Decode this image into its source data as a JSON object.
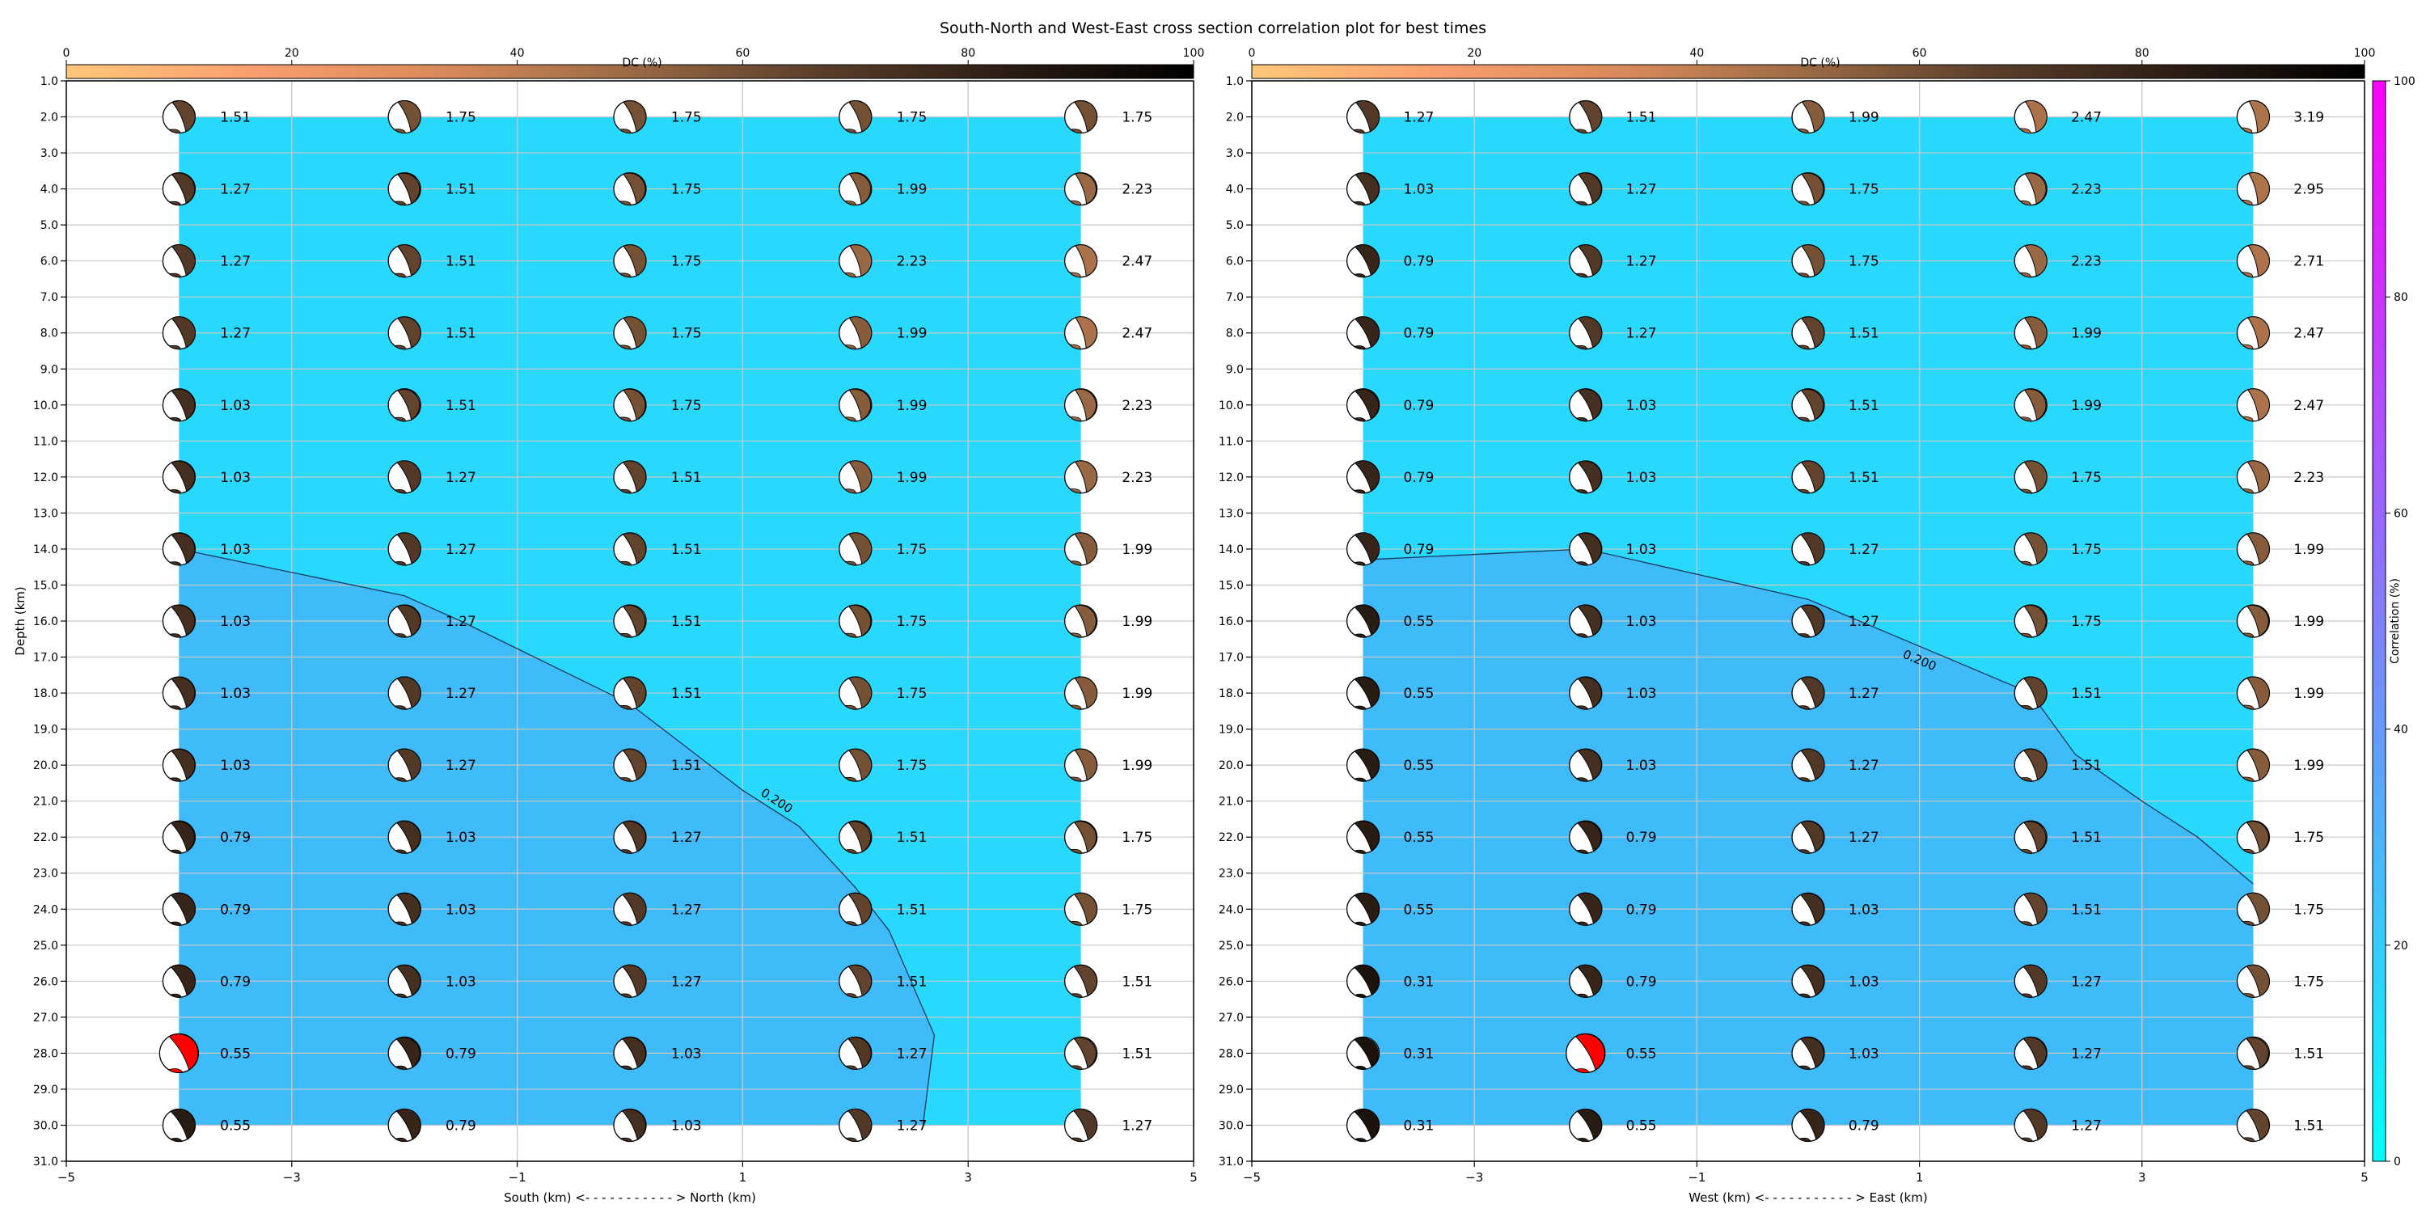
{
  "figure_title": "South-North and West-East cross section correlation plot for best times",
  "colors": {
    "background": "#ffffff",
    "low_correlation_fill": "#29d8fd",
    "high_correlation_fill": "#40bbfa",
    "contour_line": "#1b3a5a",
    "grid": "#c8c8c8",
    "best_solution_fill": "#ff0000",
    "beachball_light": "#ffffff",
    "dc_colormap": [
      "#fec77a",
      "#f99e6e",
      "#d98a5a",
      "#9a6a45",
      "#5a3e2b",
      "#2b1d14",
      "#000000"
    ],
    "correlation_colormap": [
      "#00ffff",
      "#40c0ff",
      "#8080ff",
      "#c040ff",
      "#ff00ff"
    ]
  },
  "chart_data": [
    {
      "type": "scatter",
      "name": "",
      "xlabel": "South (km) <- - - - - - - - - - - > North (km)",
      "ylabel": "Depth (km)",
      "xlim": [
        -5,
        5
      ],
      "ylim": [
        31,
        1
      ],
      "xticks": [
        "−5",
        "−3",
        "−1",
        "1",
        "3",
        "5"
      ],
      "yticks": [
        "1.0",
        "2.0",
        "3.0",
        "4.0",
        "5.0",
        "6.0",
        "7.0",
        "8.0",
        "9.0",
        "10.0",
        "11.0",
        "12.0",
        "13.0",
        "14.0",
        "15.0",
        "16.0",
        "17.0",
        "18.0",
        "19.0",
        "20.0",
        "21.0",
        "22.0",
        "23.0",
        "24.0",
        "25.0",
        "26.0",
        "27.0",
        "28.0",
        "29.0",
        "30.0",
        "31.0"
      ],
      "grid": true,
      "dc_colorbar": {
        "label": "DC (%)",
        "range": [
          0,
          100
        ],
        "ticks": [
          "0",
          "20",
          "40",
          "60",
          "80",
          "100"
        ],
        "position": "top"
      },
      "columns_x": [
        -4,
        -2,
        0,
        2,
        4
      ],
      "depths": [
        2,
        4,
        6,
        8,
        10,
        12,
        14,
        16,
        18,
        20,
        22,
        24,
        26,
        28,
        30
      ],
      "correlation_labels": [
        [
          "1.51",
          "1.75",
          "1.75",
          "1.75",
          "1.75"
        ],
        [
          "1.27",
          "1.51",
          "1.75",
          "1.99",
          "2.23"
        ],
        [
          "1.27",
          "1.51",
          "1.75",
          "2.23",
          "2.47"
        ],
        [
          "1.27",
          "1.51",
          "1.75",
          "1.99",
          "2.47"
        ],
        [
          "1.03",
          "1.51",
          "1.75",
          "1.99",
          "2.23"
        ],
        [
          "1.03",
          "1.27",
          "1.51",
          "1.99",
          "2.23"
        ],
        [
          "1.03",
          "1.27",
          "1.51",
          "1.75",
          "1.99"
        ],
        [
          "1.03",
          "1.27",
          "1.51",
          "1.75",
          "1.99"
        ],
        [
          "1.03",
          "1.27",
          "1.51",
          "1.75",
          "1.99"
        ],
        [
          "1.03",
          "1.27",
          "1.51",
          "1.75",
          "1.99"
        ],
        [
          "0.79",
          "1.03",
          "1.27",
          "1.51",
          "1.75"
        ],
        [
          "0.79",
          "1.03",
          "1.27",
          "1.51",
          "1.75"
        ],
        [
          "0.79",
          "1.03",
          "1.27",
          "1.51",
          "1.51"
        ],
        [
          "0.55",
          "0.79",
          "1.03",
          "1.27",
          "1.51"
        ],
        [
          "0.55",
          "0.79",
          "1.03",
          "1.27",
          "1.27"
        ]
      ],
      "best_solution": {
        "x": -4,
        "depth": 28
      },
      "contour": {
        "label": "0.200",
        "label_at": [
          1.3,
          21.0
        ],
        "points": [
          [
            -4,
            14.0
          ],
          [
            -2,
            15.3
          ],
          [
            -1.5,
            16.0
          ],
          [
            0,
            18.3
          ],
          [
            0.5,
            19.5
          ],
          [
            1,
            20.7
          ],
          [
            1.5,
            21.7
          ],
          [
            2,
            23.4
          ],
          [
            2.3,
            24.6
          ],
          [
            2.7,
            27.5
          ],
          [
            2.6,
            30.0
          ]
        ]
      }
    },
    {
      "type": "scatter",
      "name": "",
      "xlabel": "West (km) <- - - - - - - - - - - > East (km)",
      "ylabel": "",
      "xlim": [
        -5,
        5
      ],
      "ylim": [
        31,
        1
      ],
      "xticks": [
        "−5",
        "−3",
        "−1",
        "1",
        "3",
        "5"
      ],
      "yticks": [
        "1.0",
        "2.0",
        "3.0",
        "4.0",
        "5.0",
        "6.0",
        "7.0",
        "8.0",
        "9.0",
        "10.0",
        "11.0",
        "12.0",
        "13.0",
        "14.0",
        "15.0",
        "16.0",
        "17.0",
        "18.0",
        "19.0",
        "20.0",
        "21.0",
        "22.0",
        "23.0",
        "24.0",
        "25.0",
        "26.0",
        "27.0",
        "28.0",
        "29.0",
        "30.0",
        "31.0"
      ],
      "grid": true,
      "dc_colorbar": {
        "label": "DC (%)",
        "range": [
          0,
          100
        ],
        "ticks": [
          "0",
          "20",
          "40",
          "60",
          "80",
          "100"
        ],
        "position": "top"
      },
      "correlation_colorbar": {
        "label": "Correlation (%)",
        "range": [
          0,
          100
        ],
        "ticks": [
          "0",
          "20",
          "40",
          "60",
          "80",
          "100"
        ],
        "position": "right"
      },
      "columns_x": [
        -4,
        -2,
        0,
        2,
        4
      ],
      "depths": [
        2,
        4,
        6,
        8,
        10,
        12,
        14,
        16,
        18,
        20,
        22,
        24,
        26,
        28,
        30
      ],
      "correlation_labels": [
        [
          "1.27",
          "1.51",
          "1.99",
          "2.47",
          "3.19"
        ],
        [
          "1.03",
          "1.27",
          "1.75",
          "2.23",
          "2.95"
        ],
        [
          "0.79",
          "1.27",
          "1.75",
          "2.23",
          "2.71"
        ],
        [
          "0.79",
          "1.27",
          "1.51",
          "1.99",
          "2.47"
        ],
        [
          "0.79",
          "1.03",
          "1.51",
          "1.99",
          "2.47"
        ],
        [
          "0.79",
          "1.03",
          "1.51",
          "1.75",
          "2.23"
        ],
        [
          "0.79",
          "1.03",
          "1.27",
          "1.75",
          "1.99"
        ],
        [
          "0.55",
          "1.03",
          "1.27",
          "1.75",
          "1.99"
        ],
        [
          "0.55",
          "1.03",
          "1.27",
          "1.51",
          "1.99"
        ],
        [
          "0.55",
          "1.03",
          "1.27",
          "1.51",
          "1.99"
        ],
        [
          "0.55",
          "0.79",
          "1.27",
          "1.51",
          "1.75"
        ],
        [
          "0.55",
          "0.79",
          "1.03",
          "1.51",
          "1.75"
        ],
        [
          "0.31",
          "0.79",
          "1.03",
          "1.27",
          "1.75"
        ],
        [
          "0.31",
          "0.55",
          "1.03",
          "1.27",
          "1.51"
        ],
        [
          "0.31",
          "0.55",
          "0.79",
          "1.27",
          "1.51"
        ]
      ],
      "best_solution": {
        "x": -2,
        "depth": 28
      },
      "contour": {
        "label": "0.200",
        "label_at": [
          1.0,
          17.1
        ],
        "points": [
          [
            -4,
            14.3
          ],
          [
            -2,
            14.0
          ],
          [
            0,
            15.4
          ],
          [
            2,
            18.0
          ],
          [
            2.4,
            19.7
          ],
          [
            3,
            21.0
          ],
          [
            3.5,
            22.0
          ],
          [
            4,
            23.3
          ]
        ]
      }
    }
  ]
}
